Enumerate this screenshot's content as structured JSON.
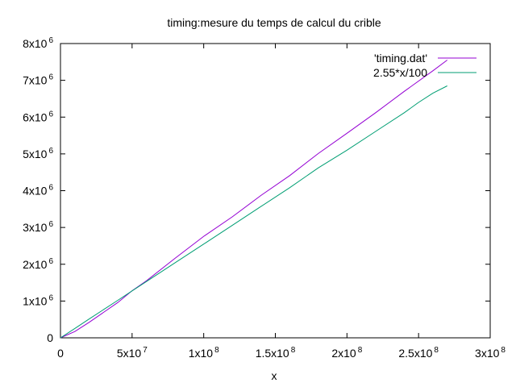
{
  "chart_data": {
    "type": "line",
    "title": "timing:mesure du temps de calcul du crible",
    "xlabel": "x",
    "ylabel": "",
    "xlim": [
      0,
      300000000
    ],
    "ylim": [
      0,
      8000000
    ],
    "x_ticks": [
      {
        "value": 0,
        "base": "0",
        "exp": ""
      },
      {
        "value": 50000000,
        "base": "5x10",
        "exp": "7"
      },
      {
        "value": 100000000,
        "base": "1x10",
        "exp": "8"
      },
      {
        "value": 150000000,
        "base": "1.5x10",
        "exp": "8"
      },
      {
        "value": 200000000,
        "base": "2x10",
        "exp": "8"
      },
      {
        "value": 250000000,
        "base": "2.5x10",
        "exp": "8"
      },
      {
        "value": 300000000,
        "base": "3x10",
        "exp": "8"
      }
    ],
    "y_ticks": [
      {
        "value": 0,
        "base": "0",
        "exp": ""
      },
      {
        "value": 1000000,
        "base": "1x10",
        "exp": "6"
      },
      {
        "value": 2000000,
        "base": "2x10",
        "exp": "6"
      },
      {
        "value": 3000000,
        "base": "3x10",
        "exp": "6"
      },
      {
        "value": 4000000,
        "base": "4x10",
        "exp": "6"
      },
      {
        "value": 5000000,
        "base": "5x10",
        "exp": "6"
      },
      {
        "value": 6000000,
        "base": "6x10",
        "exp": "6"
      },
      {
        "value": 7000000,
        "base": "7x10",
        "exp": "6"
      },
      {
        "value": 8000000,
        "base": "8x10",
        "exp": "6"
      }
    ],
    "grid": false,
    "legend_position": "top-right",
    "series": [
      {
        "name": "'timing.dat'",
        "color": "#9400d3",
        "x": [
          0,
          10000000,
          20000000,
          30000000,
          40000000,
          50000000,
          60000000,
          80000000,
          100000000,
          120000000,
          140000000,
          160000000,
          180000000,
          200000000,
          220000000,
          240000000,
          260000000,
          270000000
        ],
        "y": [
          0,
          170000,
          420000,
          690000,
          960000,
          1280000,
          1550000,
          2160000,
          2760000,
          3290000,
          3870000,
          4410000,
          5010000,
          5560000,
          6120000,
          6700000,
          7260000,
          7550000
        ]
      },
      {
        "name": "2.55*x/100",
        "color": "#009e73",
        "x": [
          0,
          10000000,
          20000000,
          30000000,
          40000000,
          50000000,
          60000000,
          80000000,
          100000000,
          120000000,
          140000000,
          160000000,
          180000000,
          200000000,
          220000000,
          240000000,
          250000000,
          260000000,
          270000000
        ],
        "y": [
          0,
          255000,
          510000,
          765000,
          1020000,
          1275000,
          1530000,
          2040000,
          2550000,
          3060000,
          3570000,
          4080000,
          4620000,
          5100000,
          5610000,
          6120000,
          6400000,
          6650000,
          6850000
        ]
      }
    ]
  }
}
